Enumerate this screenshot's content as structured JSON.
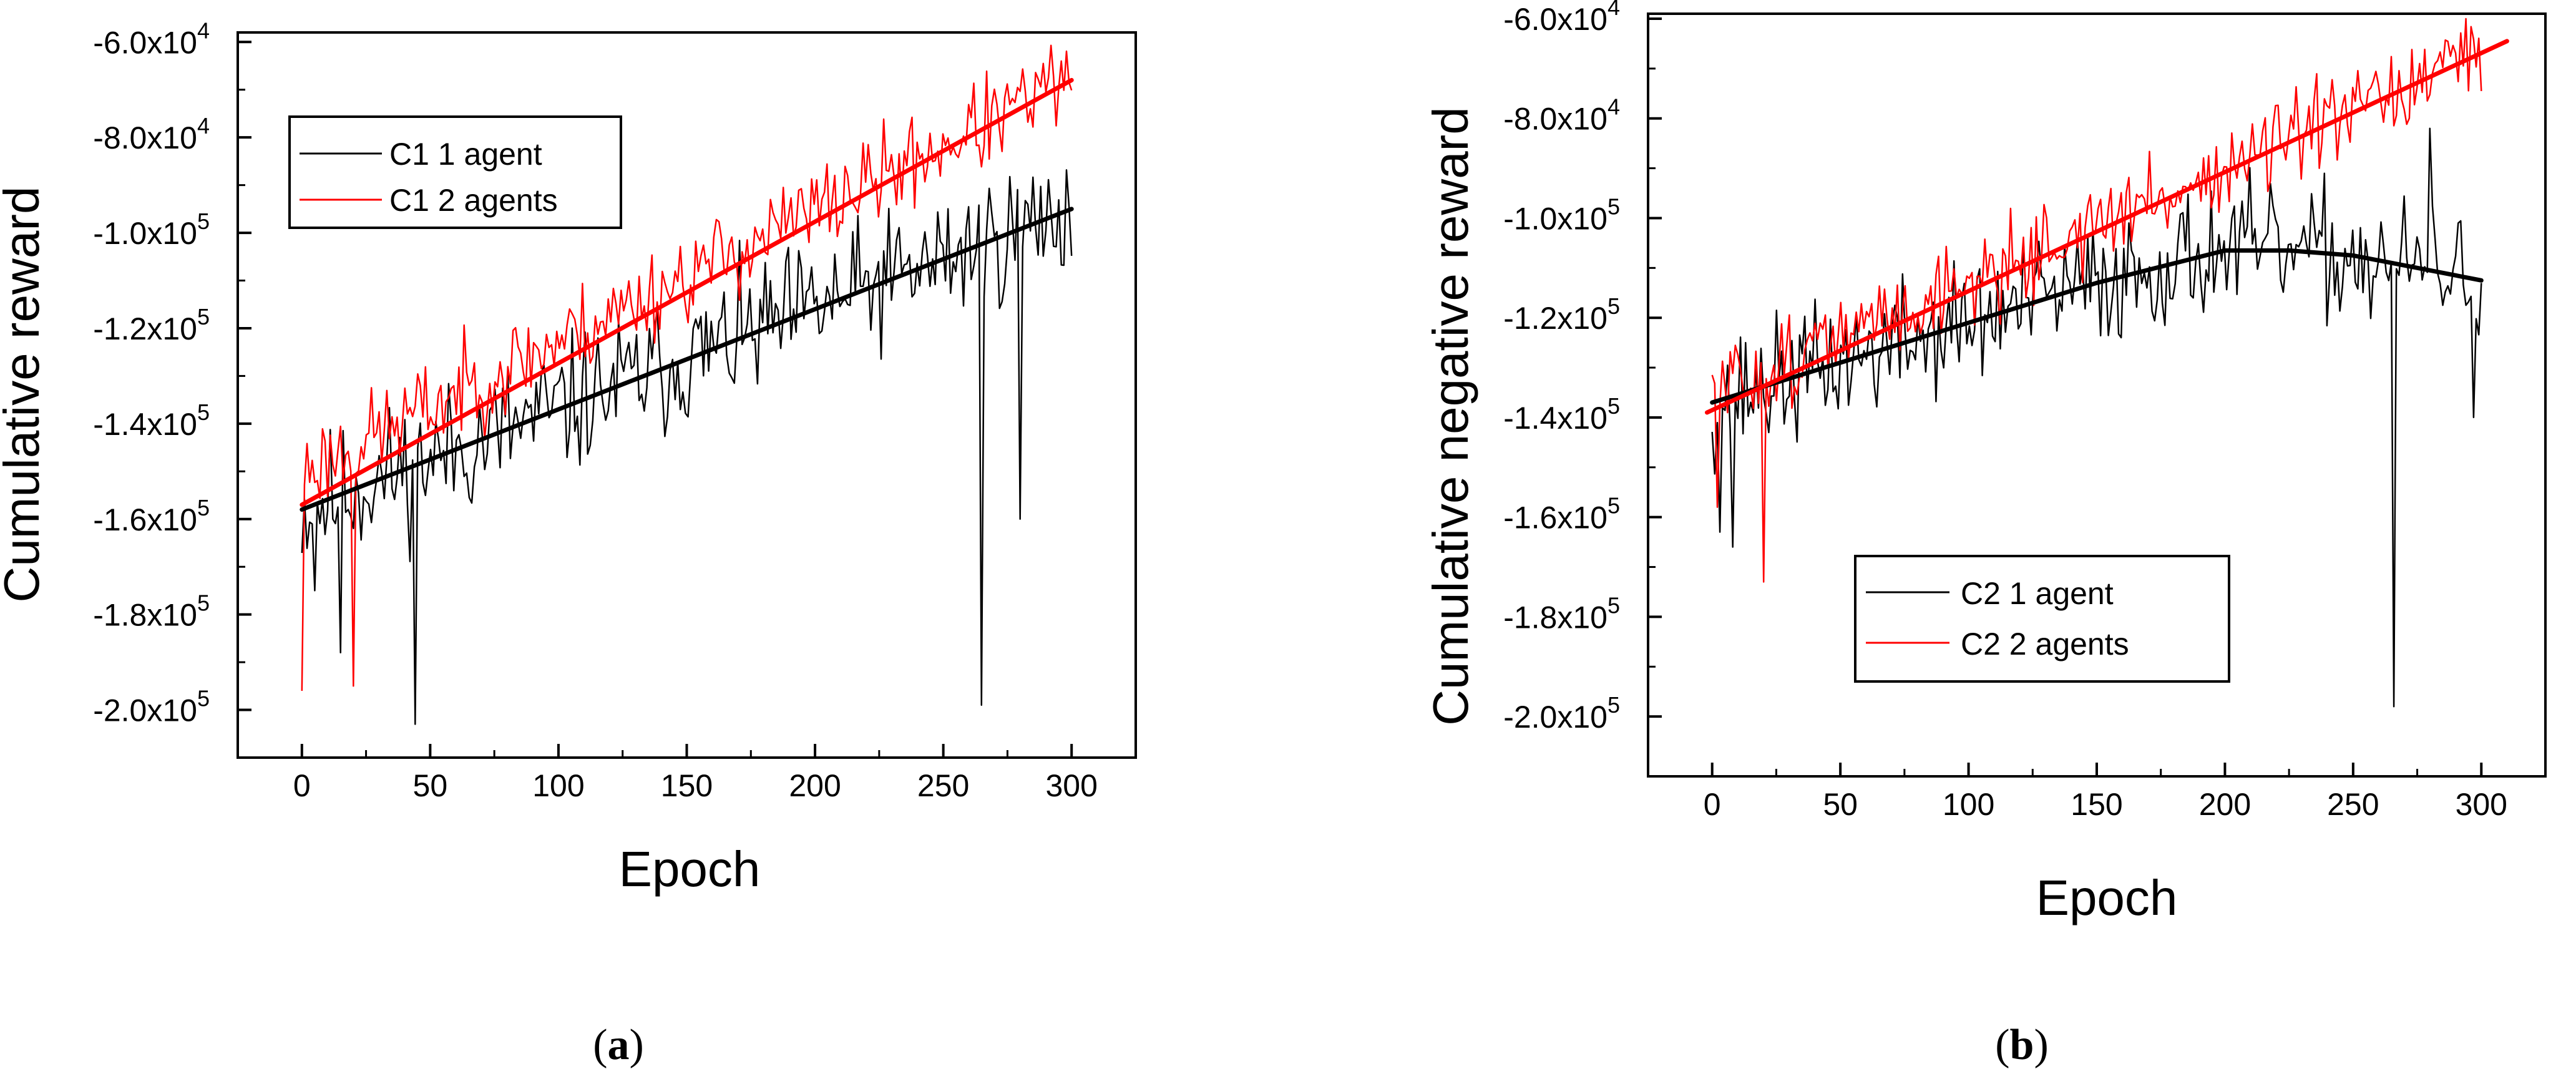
{
  "chart_data": [
    {
      "type": "line",
      "panel_label": "a",
      "xlabel": "Epoch",
      "ylabel": "Cumulative reward",
      "xlim": [
        -25,
        325
      ],
      "ylim": [
        -210000,
        -58000
      ],
      "xticks": [
        0,
        50,
        100,
        150,
        200,
        250,
        300
      ],
      "yticks": [
        {
          "value": -60000,
          "mantissa": "-6.0x10",
          "exp": "4"
        },
        {
          "value": -80000,
          "mantissa": "-8.0x10",
          "exp": "4"
        },
        {
          "value": -100000,
          "mantissa": "-1.0x10",
          "exp": "5"
        },
        {
          "value": -120000,
          "mantissa": "-1.2x10",
          "exp": "5"
        },
        {
          "value": -140000,
          "mantissa": "-1.4x10",
          "exp": "5"
        },
        {
          "value": -160000,
          "mantissa": "-1.6x10",
          "exp": "5"
        },
        {
          "value": -180000,
          "mantissa": "-1.8x10",
          "exp": "5"
        },
        {
          "value": -200000,
          "mantissa": "-2.0x10",
          "exp": "5"
        }
      ],
      "legend": {
        "position": "top-left",
        "entries": [
          {
            "label": "C1 1 agent",
            "color": "#000000"
          },
          {
            "label": "C1 2 agents",
            "color": "#ff0000"
          }
        ]
      },
      "series": [
        {
          "name": "C1 1 agent",
          "color": "#000000",
          "x_start": 0,
          "x_end": 300,
          "count": 300,
          "trend": {
            "type": "linear",
            "points": [
              [
                0,
                -158000
              ],
              [
                300,
                -95000
              ]
            ]
          },
          "noise": 18000,
          "seed": 11,
          "spikes": [
            [
              44,
              -203000
            ],
            [
              265,
              -199000
            ],
            [
              5,
              -175000
            ],
            [
              15,
              -188000
            ],
            [
              280,
              -160000
            ]
          ]
        },
        {
          "name": "C1 2 agents",
          "color": "#ff0000",
          "x_start": 0,
          "x_end": 300,
          "count": 300,
          "trend": {
            "type": "linear",
            "points": [
              [
                0,
                -150000
              ],
              [
                300,
                -68000
              ]
            ]
          },
          "noise": 12000,
          "seed": 23,
          "spikes": [
            [
              0,
              -196000
            ],
            [
              20,
              -195000
            ],
            [
              296,
              -64000
            ],
            [
              289,
              -64500
            ]
          ]
        }
      ],
      "fits": [
        {
          "name": "C1 1 agent fit",
          "color": "#000000",
          "points": [
            [
              0,
              -158000
            ],
            [
              300,
              -95000
            ]
          ]
        },
        {
          "name": "C1 2 agents fit",
          "color": "#ff0000",
          "points": [
            [
              0,
              -157000
            ],
            [
              300,
              -68000
            ]
          ]
        }
      ]
    },
    {
      "type": "line",
      "panel_label": "b",
      "xlabel": "Epoch",
      "ylabel": "Cumulative negative reward",
      "xlim": [
        -25,
        325
      ],
      "ylim": [
        -212000,
        -59000
      ],
      "xticks": [
        0,
        50,
        100,
        150,
        200,
        250,
        300
      ],
      "yticks": [
        {
          "value": -60000,
          "mantissa": "-6.0x10",
          "exp": "4"
        },
        {
          "value": -80000,
          "mantissa": "-8.0x10",
          "exp": "4"
        },
        {
          "value": -100000,
          "mantissa": "-1.0x10",
          "exp": "5"
        },
        {
          "value": -120000,
          "mantissa": "-1.2x10",
          "exp": "5"
        },
        {
          "value": -140000,
          "mantissa": "-1.4x10",
          "exp": "5"
        },
        {
          "value": -160000,
          "mantissa": "-1.6x10",
          "exp": "5"
        },
        {
          "value": -180000,
          "mantissa": "-1.8x10",
          "exp": "5"
        },
        {
          "value": -200000,
          "mantissa": "-2.0x10",
          "exp": "5"
        }
      ],
      "legend": {
        "position": "bottom-right",
        "entries": [
          {
            "label": "C2 1 agent",
            "color": "#000000"
          },
          {
            "label": "C2 2 agents",
            "color": "#ff0000"
          }
        ]
      },
      "series": [
        {
          "name": "C2 1 agent",
          "color": "#000000",
          "x_start": 0,
          "x_end": 300,
          "count": 300,
          "trend": {
            "type": "curve",
            "points": [
              [
                0,
                -137000
              ],
              [
                50,
                -129000
              ],
              [
                100,
                -121000
              ],
              [
                150,
                -113000
              ],
              [
                200,
                -106000
              ],
              [
                250,
                -108000
              ],
              [
                300,
                -112000
              ]
            ]
          },
          "noise": 16000,
          "seed": 37,
          "spikes": [
            [
              3,
              -163000
            ],
            [
              8,
              -166000
            ],
            [
              266,
              -198000
            ],
            [
              297,
              -140000
            ],
            [
              280,
              -82000
            ]
          ]
        },
        {
          "name": "C2 2 agents",
          "color": "#ff0000",
          "x_start": 0,
          "x_end": 300,
          "count": 300,
          "trend": {
            "type": "linear",
            "points": [
              [
                0,
                -135000
              ],
              [
                300,
                -68000
              ]
            ]
          },
          "noise": 11000,
          "seed": 51,
          "spikes": [
            [
              20,
              -173000
            ],
            [
              294,
              -60000
            ],
            [
              2,
              -158000
            ]
          ]
        }
      ],
      "fits": [
        {
          "name": "C2 1 agent fit",
          "color": "#000000",
          "points": [
            [
              0,
              -137000
            ],
            [
              50,
              -129000
            ],
            [
              100,
              -121000
            ],
            [
              150,
              -113000
            ],
            [
              200,
              -106500
            ],
            [
              225,
              -106500
            ],
            [
              250,
              -107500
            ],
            [
              300,
              -112500
            ]
          ]
        },
        {
          "name": "C2 2 agents fit",
          "color": "#ff0000",
          "points": [
            [
              -2,
              -139000
            ],
            [
              310,
              -64500
            ]
          ]
        }
      ]
    }
  ]
}
